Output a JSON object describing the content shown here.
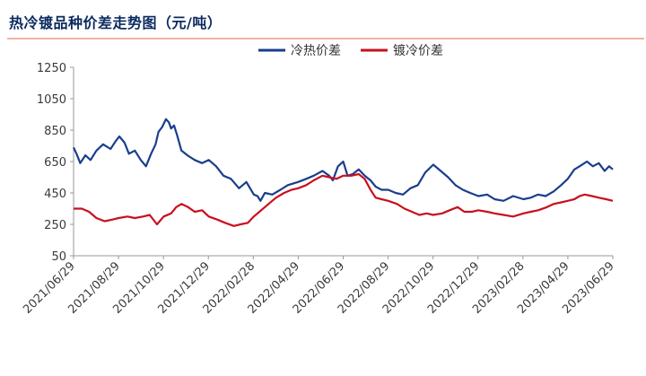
{
  "title": "热冷镀品种价差走势图（元/吨）",
  "chart_data": {
    "type": "line",
    "title": "热冷镀品种价差走势图（元/吨）",
    "xlabel": "",
    "ylabel": "",
    "ylim": [
      50,
      1250
    ],
    "yticks": [
      50,
      250,
      450,
      650,
      850,
      1050,
      1250
    ],
    "x_tick_labels": [
      "2021/06/29",
      "2021/08/29",
      "2021/10/29",
      "2021/12/29",
      "2022/02/28",
      "2022/04/29",
      "2022/06/29",
      "2022/08/29",
      "2022/10/29",
      "2022/12/29",
      "2023/02/28",
      "2023/04/29",
      "2023/06/29"
    ],
    "x_start": "2021-06-29",
    "x_end": "2023-06-29",
    "grid": false,
    "legend_position": "top-right",
    "series": [
      {
        "name": "冷热价差",
        "color": "#1a3e8c",
        "points": [
          [
            "2021-06-29",
            740
          ],
          [
            "2021-07-03",
            700
          ],
          [
            "2021-07-08",
            640
          ],
          [
            "2021-07-15",
            690
          ],
          [
            "2021-07-22",
            660
          ],
          [
            "2021-07-30",
            720
          ],
          [
            "2021-08-08",
            760
          ],
          [
            "2021-08-18",
            730
          ],
          [
            "2021-08-25",
            780
          ],
          [
            "2021-08-30",
            810
          ],
          [
            "2021-09-06",
            770
          ],
          [
            "2021-09-12",
            700
          ],
          [
            "2021-09-20",
            720
          ],
          [
            "2021-09-28",
            660
          ],
          [
            "2021-10-05",
            620
          ],
          [
            "2021-10-12",
            700
          ],
          [
            "2021-10-18",
            760
          ],
          [
            "2021-10-22",
            840
          ],
          [
            "2021-10-27",
            870
          ],
          [
            "2021-11-01",
            920
          ],
          [
            "2021-11-05",
            900
          ],
          [
            "2021-11-08",
            860
          ],
          [
            "2021-11-12",
            880
          ],
          [
            "2021-11-16",
            820
          ],
          [
            "2021-11-22",
            720
          ],
          [
            "2021-11-30",
            690
          ],
          [
            "2021-12-10",
            660
          ],
          [
            "2021-12-20",
            640
          ],
          [
            "2021-12-29",
            660
          ],
          [
            "2022-01-08",
            620
          ],
          [
            "2022-01-18",
            560
          ],
          [
            "2022-01-28",
            540
          ],
          [
            "2022-02-08",
            480
          ],
          [
            "2022-02-18",
            520
          ],
          [
            "2022-02-28",
            440
          ],
          [
            "2022-03-05",
            430
          ],
          [
            "2022-03-09",
            400
          ],
          [
            "2022-03-15",
            450
          ],
          [
            "2022-03-25",
            440
          ],
          [
            "2022-04-05",
            470
          ],
          [
            "2022-04-15",
            500
          ],
          [
            "2022-04-29",
            520
          ],
          [
            "2022-05-10",
            540
          ],
          [
            "2022-05-20",
            560
          ],
          [
            "2022-06-01",
            590
          ],
          [
            "2022-06-10",
            560
          ],
          [
            "2022-06-15",
            530
          ],
          [
            "2022-06-22",
            620
          ],
          [
            "2022-06-29",
            650
          ],
          [
            "2022-07-05",
            560
          ],
          [
            "2022-07-12",
            570
          ],
          [
            "2022-07-20",
            600
          ],
          [
            "2022-07-28",
            560
          ],
          [
            "2022-08-05",
            530
          ],
          [
            "2022-08-12",
            490
          ],
          [
            "2022-08-20",
            470
          ],
          [
            "2022-08-29",
            470
          ],
          [
            "2022-09-08",
            450
          ],
          [
            "2022-09-18",
            440
          ],
          [
            "2022-09-28",
            480
          ],
          [
            "2022-10-08",
            500
          ],
          [
            "2022-10-18",
            580
          ],
          [
            "2022-10-29",
            630
          ],
          [
            "2022-11-08",
            590
          ],
          [
            "2022-11-18",
            550
          ],
          [
            "2022-11-28",
            500
          ],
          [
            "2022-12-08",
            470
          ],
          [
            "2022-12-18",
            450
          ],
          [
            "2022-12-29",
            430
          ],
          [
            "2023-01-10",
            440
          ],
          [
            "2023-01-20",
            410
          ],
          [
            "2023-02-01",
            400
          ],
          [
            "2023-02-14",
            430
          ],
          [
            "2023-02-28",
            410
          ],
          [
            "2023-03-10",
            420
          ],
          [
            "2023-03-20",
            440
          ],
          [
            "2023-03-30",
            430
          ],
          [
            "2023-04-10",
            460
          ],
          [
            "2023-04-20",
            500
          ],
          [
            "2023-04-29",
            540
          ],
          [
            "2023-05-08",
            600
          ],
          [
            "2023-05-15",
            620
          ],
          [
            "2023-05-25",
            650
          ],
          [
            "2023-06-02",
            620
          ],
          [
            "2023-06-10",
            640
          ],
          [
            "2023-06-18",
            590
          ],
          [
            "2023-06-24",
            620
          ],
          [
            "2023-06-29",
            600
          ]
        ]
      },
      {
        "name": "镀冷价差",
        "color": "#c8101e",
        "points": [
          [
            "2021-06-29",
            350
          ],
          [
            "2021-07-10",
            350
          ],
          [
            "2021-07-20",
            330
          ],
          [
            "2021-07-30",
            290
          ],
          [
            "2021-08-10",
            270
          ],
          [
            "2021-08-20",
            280
          ],
          [
            "2021-08-29",
            290
          ],
          [
            "2021-09-10",
            300
          ],
          [
            "2021-09-20",
            290
          ],
          [
            "2021-10-01",
            300
          ],
          [
            "2021-10-10",
            310
          ],
          [
            "2021-10-20",
            250
          ],
          [
            "2021-10-29",
            300
          ],
          [
            "2021-11-08",
            320
          ],
          [
            "2021-11-15",
            360
          ],
          [
            "2021-11-22",
            380
          ],
          [
            "2021-12-01",
            360
          ],
          [
            "2021-12-10",
            330
          ],
          [
            "2021-12-20",
            340
          ],
          [
            "2021-12-29",
            300
          ],
          [
            "2022-01-10",
            280
          ],
          [
            "2022-01-20",
            260
          ],
          [
            "2022-02-01",
            240
          ],
          [
            "2022-02-10",
            250
          ],
          [
            "2022-02-20",
            260
          ],
          [
            "2022-02-28",
            300
          ],
          [
            "2022-03-10",
            340
          ],
          [
            "2022-03-20",
            380
          ],
          [
            "2022-03-30",
            420
          ],
          [
            "2022-04-10",
            450
          ],
          [
            "2022-04-20",
            470
          ],
          [
            "2022-04-29",
            480
          ],
          [
            "2022-05-10",
            500
          ],
          [
            "2022-05-20",
            530
          ],
          [
            "2022-06-01",
            560
          ],
          [
            "2022-06-10",
            550
          ],
          [
            "2022-06-20",
            540
          ],
          [
            "2022-06-29",
            560
          ],
          [
            "2022-07-10",
            560
          ],
          [
            "2022-07-20",
            570
          ],
          [
            "2022-07-28",
            540
          ],
          [
            "2022-08-05",
            470
          ],
          [
            "2022-08-12",
            420
          ],
          [
            "2022-08-20",
            410
          ],
          [
            "2022-08-29",
            400
          ],
          [
            "2022-09-10",
            380
          ],
          [
            "2022-09-20",
            350
          ],
          [
            "2022-09-30",
            330
          ],
          [
            "2022-10-10",
            310
          ],
          [
            "2022-10-20",
            320
          ],
          [
            "2022-10-29",
            310
          ],
          [
            "2022-11-10",
            320
          ],
          [
            "2022-11-20",
            340
          ],
          [
            "2022-12-01",
            360
          ],
          [
            "2022-12-10",
            330
          ],
          [
            "2022-12-20",
            330
          ],
          [
            "2022-12-29",
            340
          ],
          [
            "2023-01-10",
            330
          ],
          [
            "2023-01-20",
            320
          ],
          [
            "2023-02-01",
            310
          ],
          [
            "2023-02-14",
            300
          ],
          [
            "2023-02-28",
            320
          ],
          [
            "2023-03-10",
            330
          ],
          [
            "2023-03-20",
            340
          ],
          [
            "2023-04-01",
            360
          ],
          [
            "2023-04-10",
            380
          ],
          [
            "2023-04-20",
            390
          ],
          [
            "2023-04-29",
            400
          ],
          [
            "2023-05-08",
            410
          ],
          [
            "2023-05-15",
            430
          ],
          [
            "2023-05-22",
            440
          ],
          [
            "2023-06-01",
            430
          ],
          [
            "2023-06-10",
            420
          ],
          [
            "2023-06-20",
            410
          ],
          [
            "2023-06-29",
            400
          ]
        ]
      }
    ]
  }
}
